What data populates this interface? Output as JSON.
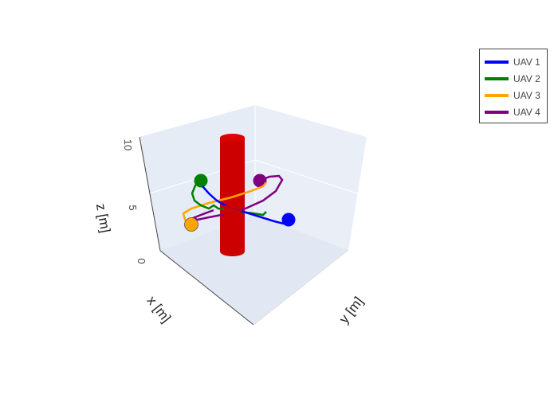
{
  "chart_data": {
    "type": "scatter3d",
    "axes": {
      "x": {
        "title": "x [m]"
      },
      "y": {
        "title": "y [m]"
      },
      "z": {
        "title": "z [m]",
        "range": [
          0,
          10
        ],
        "ticks": [
          "0",
          "5",
          "10"
        ]
      }
    },
    "background_color": "#e5ecf6",
    "legend_position": "top-right",
    "obstacle": {
      "shape": "cylinder",
      "color": "#cc0000",
      "z_range": [
        0,
        10
      ]
    },
    "series": [
      {
        "name": "UAV 1",
        "color": "#0000ff"
      },
      {
        "name": "UAV 2",
        "color": "#008000"
      },
      {
        "name": "UAV 3",
        "color": "#ffa500"
      },
      {
        "name": "UAV 4",
        "color": "#800080"
      }
    ]
  }
}
